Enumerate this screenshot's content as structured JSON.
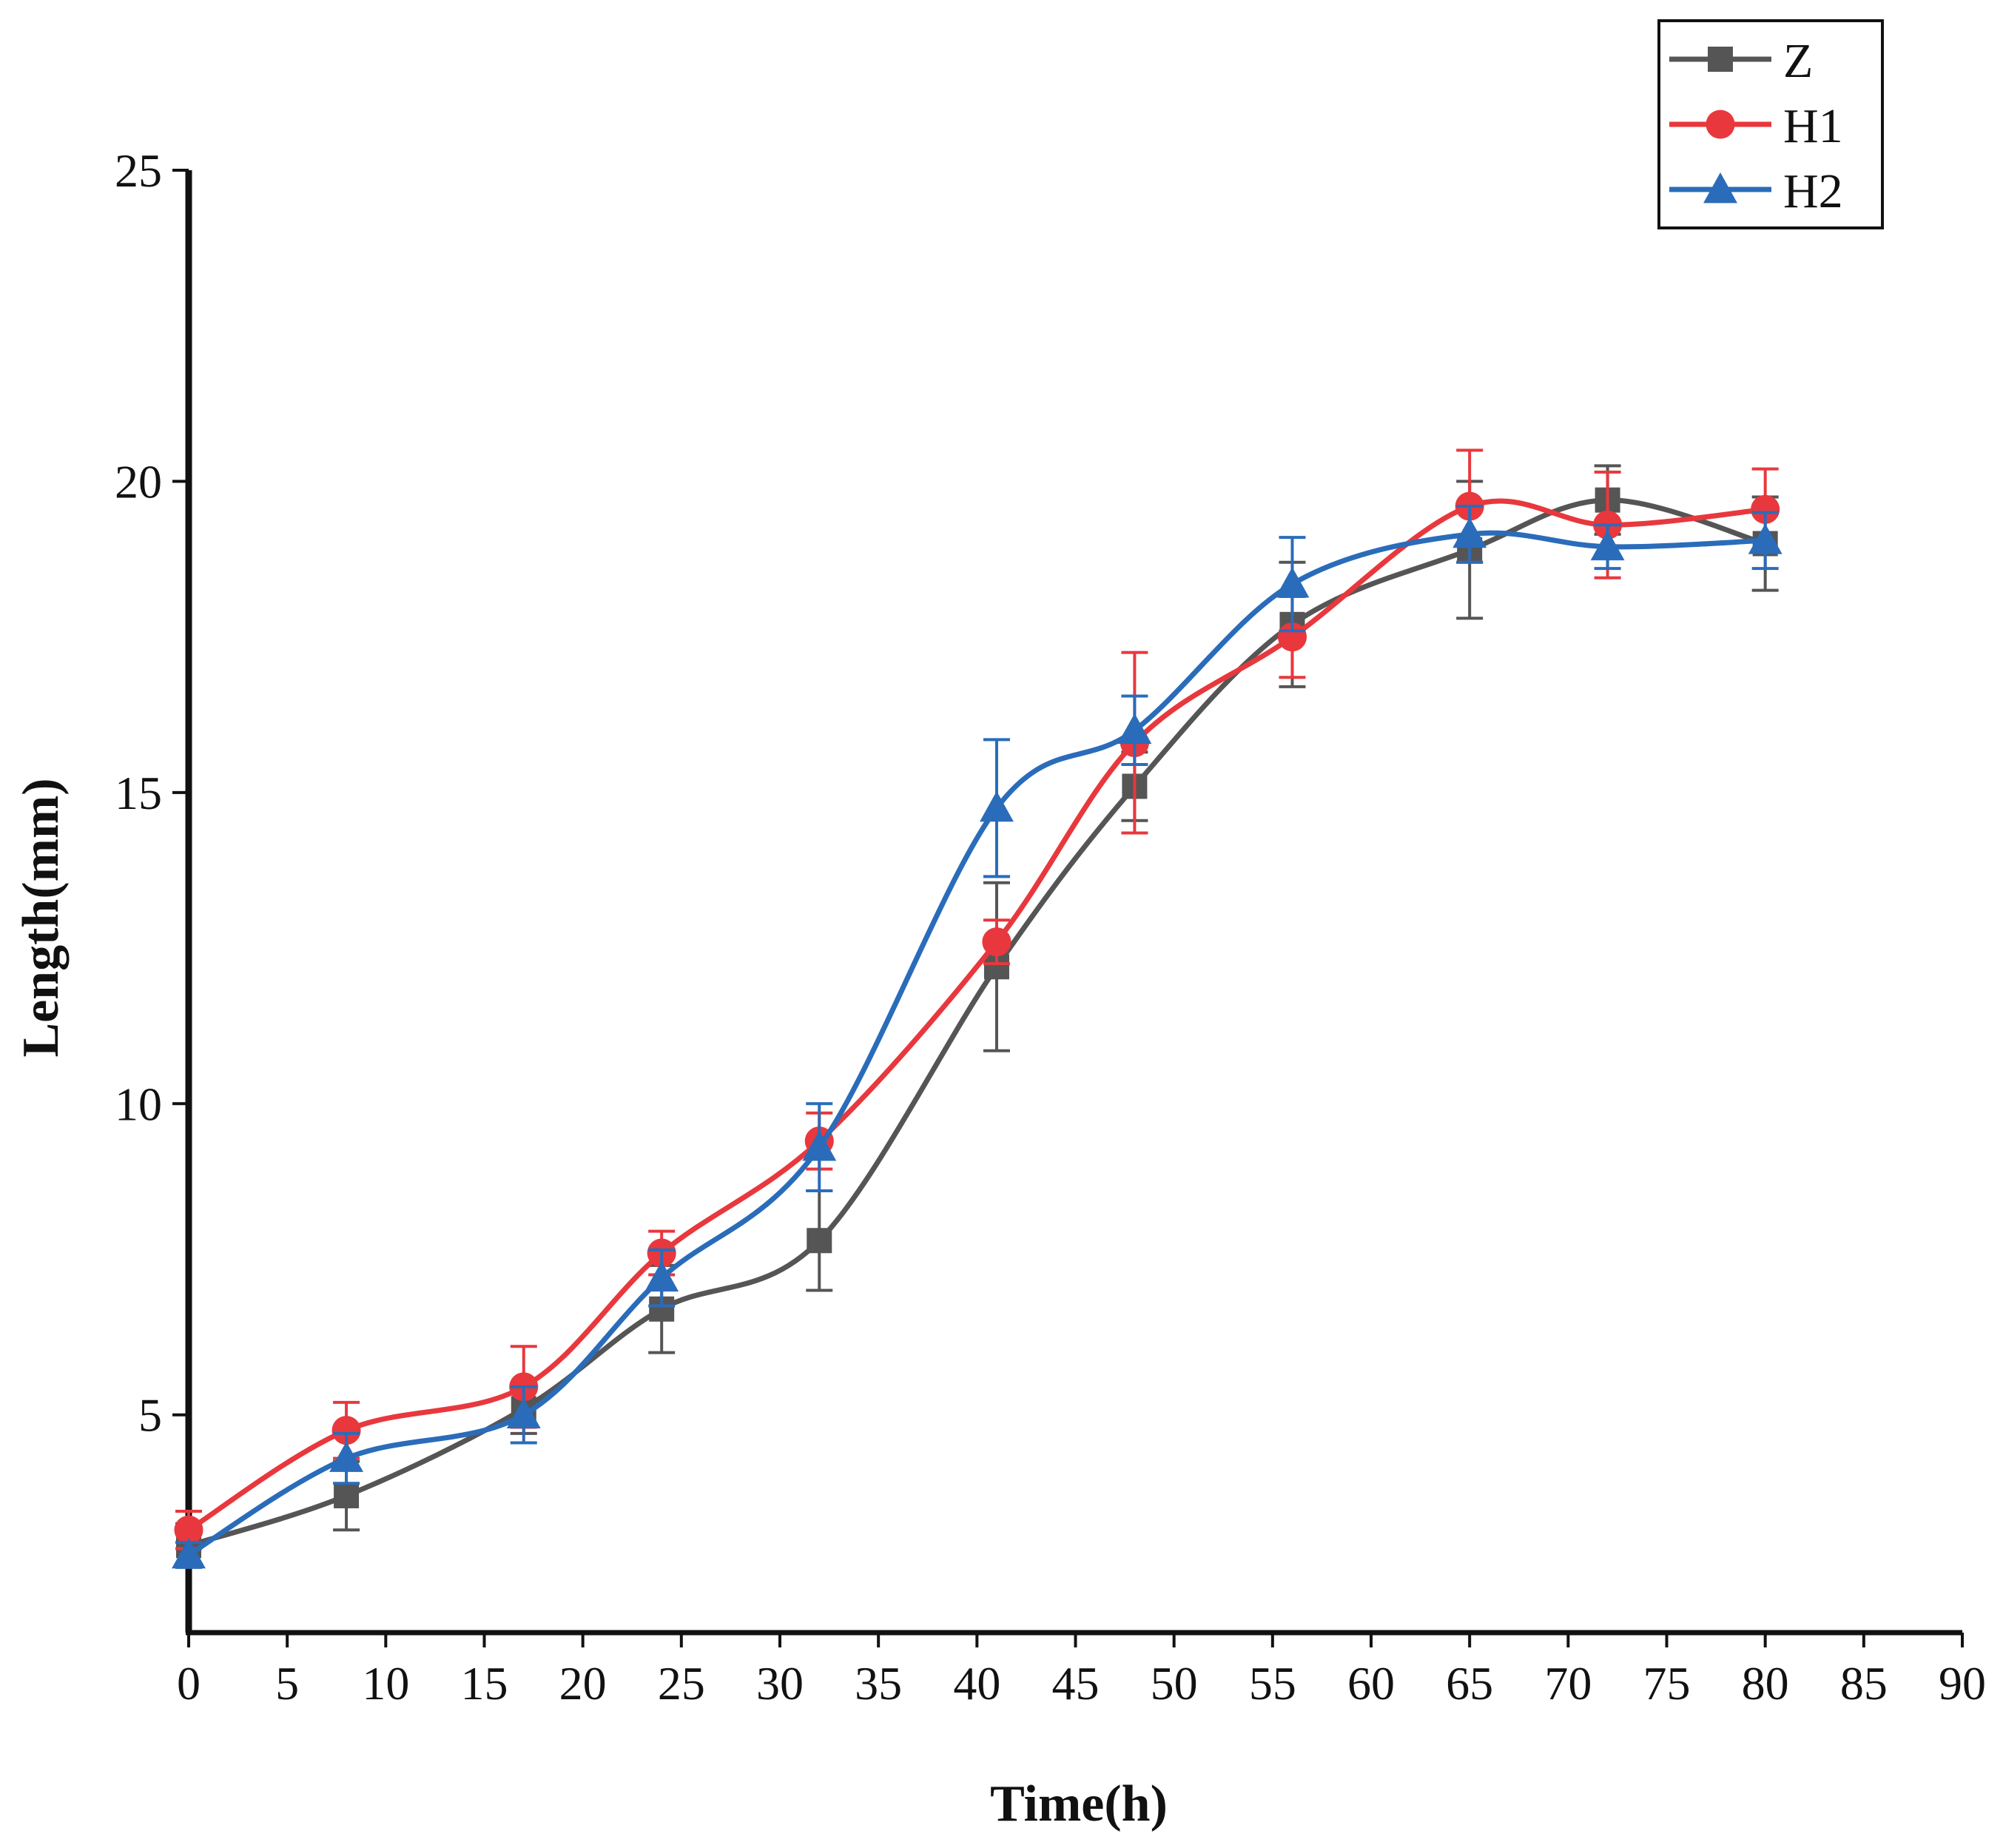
{
  "chart_data": {
    "type": "line",
    "title": "",
    "xlabel": "Time(h)",
    "ylabel": "Length(mm)",
    "xlim": [
      0,
      90
    ],
    "ylim": [
      1.5,
      25
    ],
    "xticks": [
      0,
      5,
      10,
      15,
      20,
      25,
      30,
      35,
      40,
      45,
      50,
      55,
      60,
      65,
      70,
      75,
      80,
      85,
      90
    ],
    "yticks": [
      5,
      10,
      15,
      20,
      25
    ],
    "grid": false,
    "legend_position": "top-right",
    "x": [
      0,
      8,
      17,
      24,
      32,
      41,
      48,
      56,
      65,
      72,
      80
    ],
    "series": [
      {
        "name": "Z",
        "color": "#555555",
        "marker": "square",
        "values": [
          2.9,
          3.7,
          5.1,
          6.7,
          7.8,
          12.2,
          15.1,
          17.7,
          18.9,
          19.7,
          19.0
        ],
        "errors": [
          0.35,
          0.55,
          0.4,
          0.7,
          0.8,
          1.35,
          0.55,
          1.0,
          1.1,
          0.55,
          0.75
        ]
      },
      {
        "name": "H1",
        "color": "#e8383d",
        "marker": "circle",
        "values": [
          3.15,
          4.75,
          5.45,
          7.6,
          9.4,
          12.6,
          15.8,
          17.5,
          19.6,
          19.3,
          19.55
        ],
        "errors": [
          0.3,
          0.45,
          0.65,
          0.35,
          0.45,
          0.35,
          1.45,
          0.65,
          0.9,
          0.85,
          0.65
        ]
      },
      {
        "name": "H2",
        "color": "#2a6cba",
        "marker": "triangle",
        "values": [
          2.75,
          4.3,
          5.0,
          7.2,
          9.3,
          14.75,
          16.0,
          18.35,
          19.15,
          18.95,
          19.05
        ],
        "errors": [
          0.2,
          0.4,
          0.45,
          0.45,
          0.7,
          1.1,
          0.55,
          0.75,
          0.45,
          0.35,
          0.45
        ]
      }
    ]
  }
}
